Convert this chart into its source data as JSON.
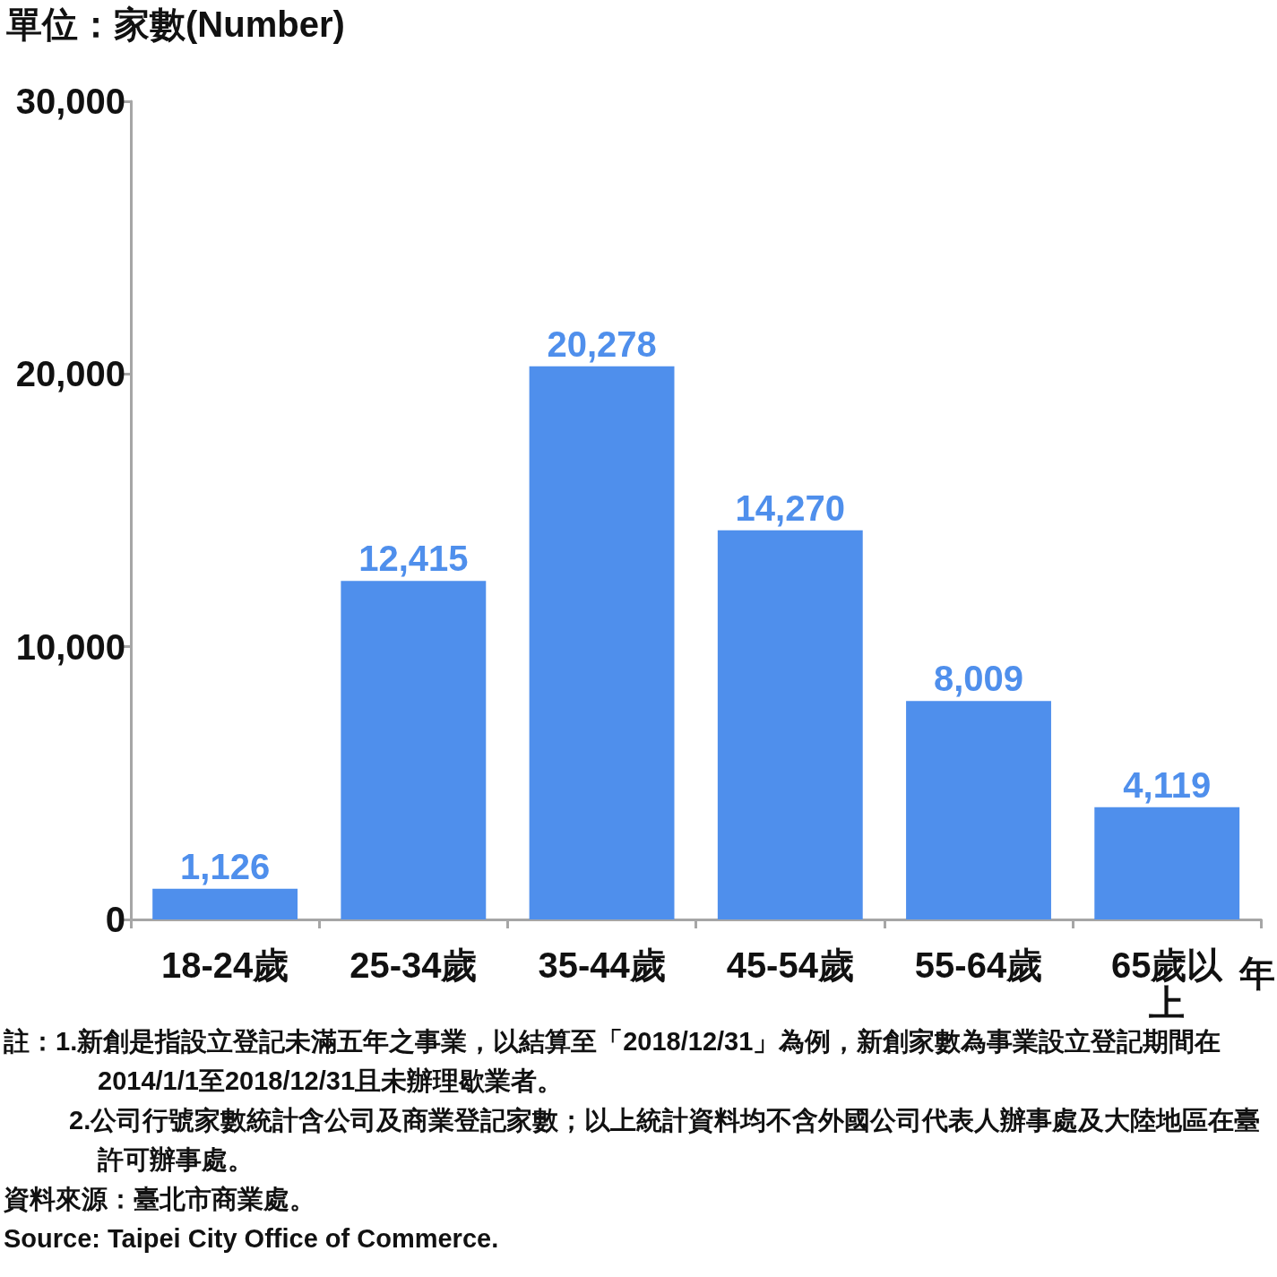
{
  "chart_data": {
    "type": "bar",
    "ylabel": "單位：家數(Number)",
    "xlabel": "年",
    "categories": [
      "18-24歲",
      "25-34歲",
      "35-44歲",
      "45-54歲",
      "55-64歲",
      "65歲以上"
    ],
    "values": [
      1126,
      12415,
      20278,
      14270,
      8009,
      4119
    ],
    "color": "#4f8fec",
    "ylim": [
      0,
      30000
    ],
    "yticks": [
      {
        "value": 0,
        "label": "0"
      },
      {
        "value": 10000,
        "label": "10,000"
      },
      {
        "value": 20000,
        "label": "20,000"
      },
      {
        "value": 30000,
        "label": "30,000"
      }
    ],
    "value_labels": [
      "1,126",
      "12,415",
      "20,278",
      "14,270",
      "8,009",
      "4,119"
    ],
    "grid": false,
    "annotations": [
      "註：1.新創是指設立登記未滿五年之事業，以結算至「2018/12/31」為例，新創家數為事業設立登記期間在2014/1/1至2018/12/31且未辦理歇業者。",
      "2.公司行號家數統計含公司及商業登記家數；以上統計資料均不含外國公司代表人辦事處及大陸地區在臺許可辦事處。",
      "資料來源：臺北市商業處。",
      "Source: Taipei City Office of Commerce."
    ]
  }
}
